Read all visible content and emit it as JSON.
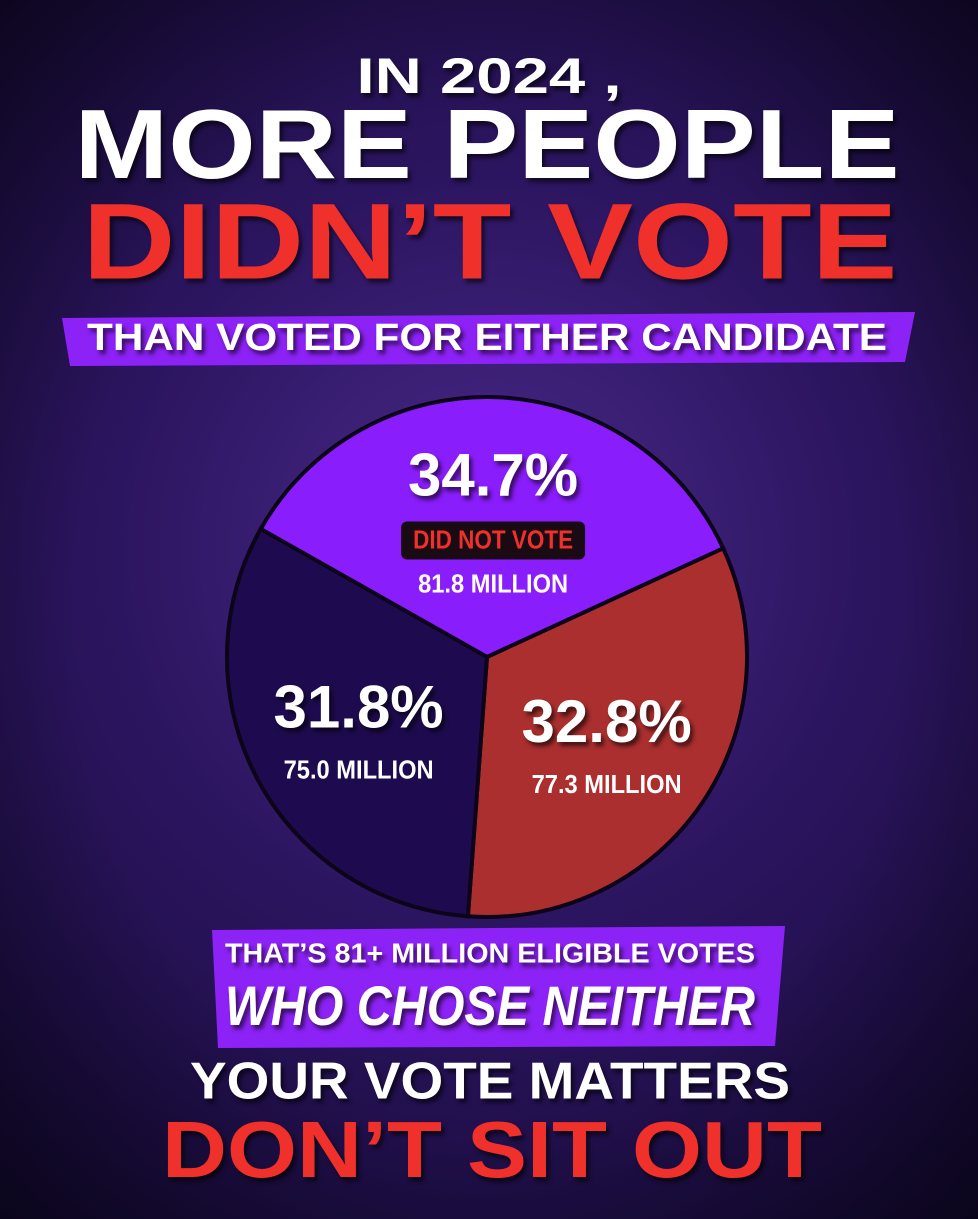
{
  "header": {
    "line1": "IN 2024 ,",
    "line2": "MORE PEOPLE",
    "line3": "DIDN’T VOTE",
    "line4": "THAN VOTED FOR EITHER CANDIDATE"
  },
  "chart_data": {
    "type": "pie",
    "categories": [
      "DID NOT VOTE",
      null,
      null
    ],
    "values": [
      34.7,
      32.8,
      31.8
    ],
    "value_labels": [
      "34.7%",
      "32.8%",
      "31.8%"
    ],
    "secondary_labels": [
      "81.8 MILLION",
      "77.3 MILLION",
      "75.0 MILLION"
    ],
    "colors": [
      "#8a1dfb",
      "#ab2f2f",
      "#1e0b4f"
    ]
  },
  "footer": {
    "line1": "THAT’S 81+ MILLION ELIGIBLE VOTES",
    "line2": "WHO CHOSE NEITHER",
    "line3": "YOUR VOTE MATTERS",
    "line4": "DON’T SIT OUT"
  }
}
